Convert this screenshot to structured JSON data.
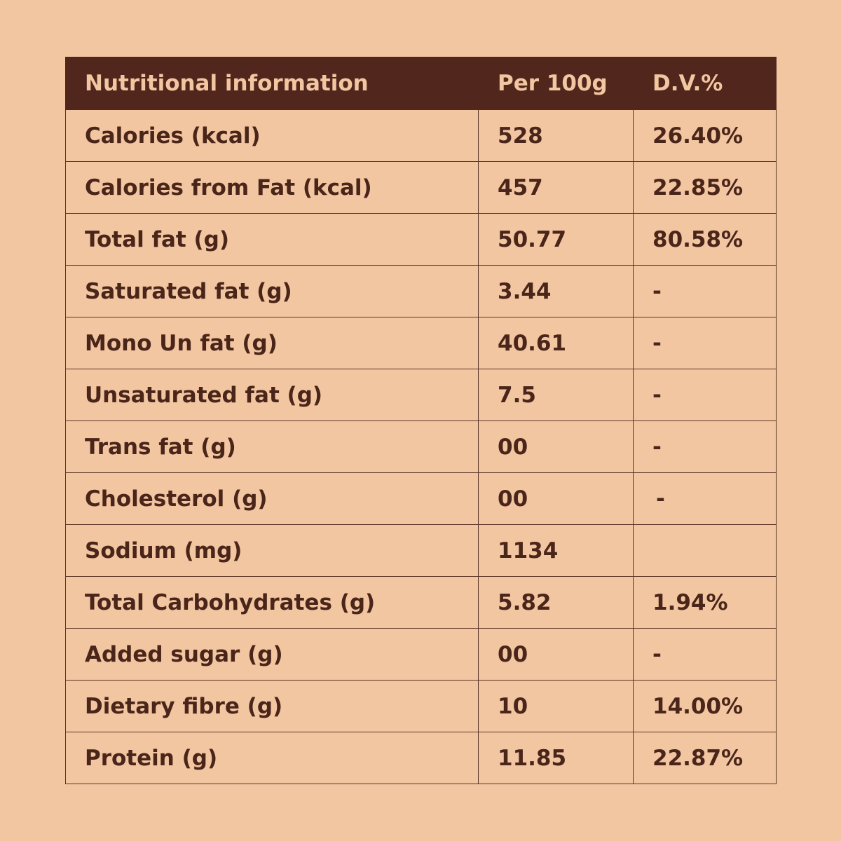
{
  "table": {
    "headers": [
      "Nutritional information",
      "Per 100g",
      "D.V.%"
    ],
    "rows": [
      {
        "label": "Calories (kcal)",
        "per100g": "528",
        "dv": "26.40%"
      },
      {
        "label": "Calories from Fat (kcal)",
        "per100g": "457",
        "dv": "22.85%"
      },
      {
        "label": "Total fat (g)",
        "per100g": "50.77",
        "dv": "80.58%"
      },
      {
        "label": "Saturated fat (g)",
        "per100g": "3.44",
        "dv": "-"
      },
      {
        "label": "Mono Un fat (g)",
        "per100g": "40.61",
        "dv": "-"
      },
      {
        "label": "Unsaturated fat (g)",
        "per100g": "7.5",
        "dv": "-"
      },
      {
        "label": "Trans fat (g)",
        "per100g": "00",
        "dv": "-"
      },
      {
        "label": "Cholesterol (g)",
        "per100g": "00",
        "dv": "-"
      },
      {
        "label": "Sodium (mg)",
        "per100g": "1134",
        "dv": ""
      },
      {
        "label": "Total Carbohydrates (g)",
        "per100g": "5.82",
        "dv": "1.94%"
      },
      {
        "label": "Added sugar (g)",
        "per100g": "00",
        "dv": "-"
      },
      {
        "label": "Dietary fibre (g)",
        "per100g": "10",
        "dv": "14.00%"
      },
      {
        "label": "Protein (g)",
        "per100g": "11.85",
        "dv": "22.87%"
      }
    ]
  },
  "colors": {
    "background": "#f3c6a2",
    "header_background": "#51261c",
    "header_text": "#f3c6a2",
    "body_text": "#4a2519",
    "border": "#5a3326"
  }
}
